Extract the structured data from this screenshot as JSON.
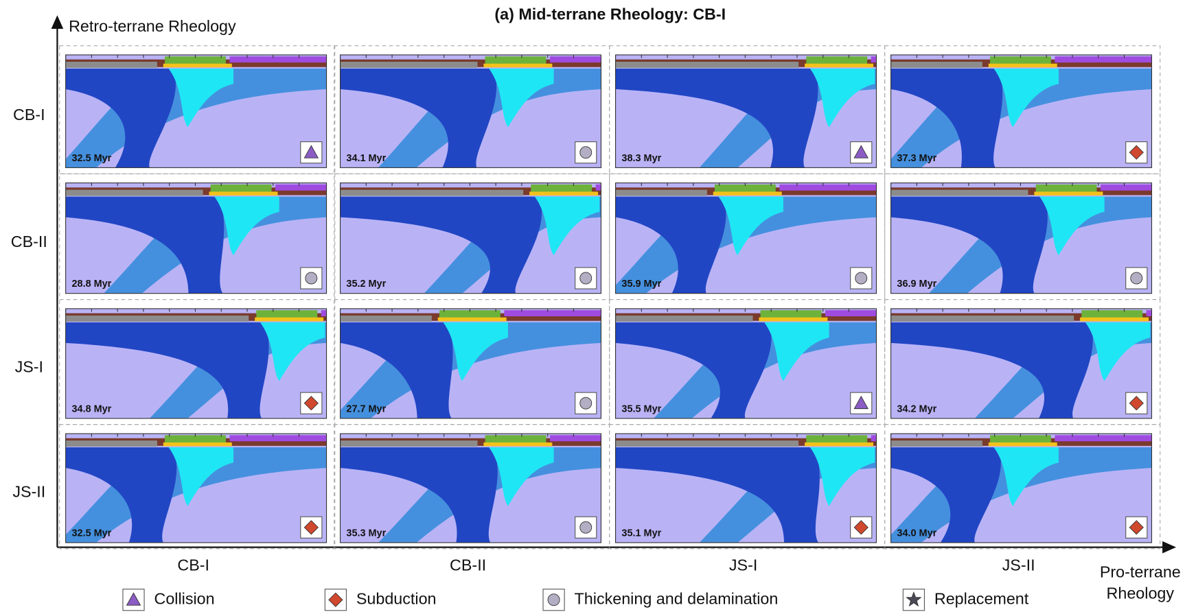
{
  "title": "(a) Mid-terrane Rheology: CB-I",
  "y_axis_label": "Retro-terrane Rheology",
  "x_axis_label": [
    "Pro-terrane",
    "Rheology"
  ],
  "columns": [
    "CB-I",
    "CB-II",
    "JS-I",
    "JS-II"
  ],
  "rows": [
    {
      "label": "CB-I",
      "cells": [
        {
          "time": "32.5 Myr",
          "regime": "Collision"
        },
        {
          "time": "34.1 Myr",
          "regime": "Thickening and delamination"
        },
        {
          "time": "38.3 Myr",
          "regime": "Collision"
        },
        {
          "time": "37.3 Myr",
          "regime": "Subduction"
        }
      ]
    },
    {
      "label": "CB-II",
      "cells": [
        {
          "time": "28.8 Myr",
          "regime": "Thickening and delamination"
        },
        {
          "time": "35.2 Myr",
          "regime": "Thickening and delamination"
        },
        {
          "time": "35.9 Myr",
          "regime": "Thickening and delamination"
        },
        {
          "time": "36.9 Myr",
          "regime": "Thickening and delamination"
        }
      ]
    },
    {
      "label": "JS-I",
      "cells": [
        {
          "time": "34.8 Myr",
          "regime": "Subduction"
        },
        {
          "time": "27.7 Myr",
          "regime": "Thickening and delamination"
        },
        {
          "time": "35.5 Myr",
          "regime": "Collision"
        },
        {
          "time": "34.2 Myr",
          "regime": "Subduction"
        }
      ]
    },
    {
      "label": "JS-II",
      "cells": [
        {
          "time": "32.5 Myr",
          "regime": "Subduction"
        },
        {
          "time": "35.3 Myr",
          "regime": "Thickening and delamination"
        },
        {
          "time": "35.1 Myr",
          "regime": "Subduction"
        },
        {
          "time": "34.0 Myr",
          "regime": "Subduction"
        }
      ]
    }
  ],
  "legend": [
    {
      "label": "Collision",
      "shape": "triangle",
      "color": "#8b5cc4"
    },
    {
      "label": "Subduction",
      "shape": "diamond",
      "color": "#d0482e"
    },
    {
      "label": "Thickening and delamination",
      "shape": "circle",
      "color": "#b4aec4"
    },
    {
      "label": "Replacement",
      "shape": "star",
      "color": "#4a4a56"
    }
  ]
}
